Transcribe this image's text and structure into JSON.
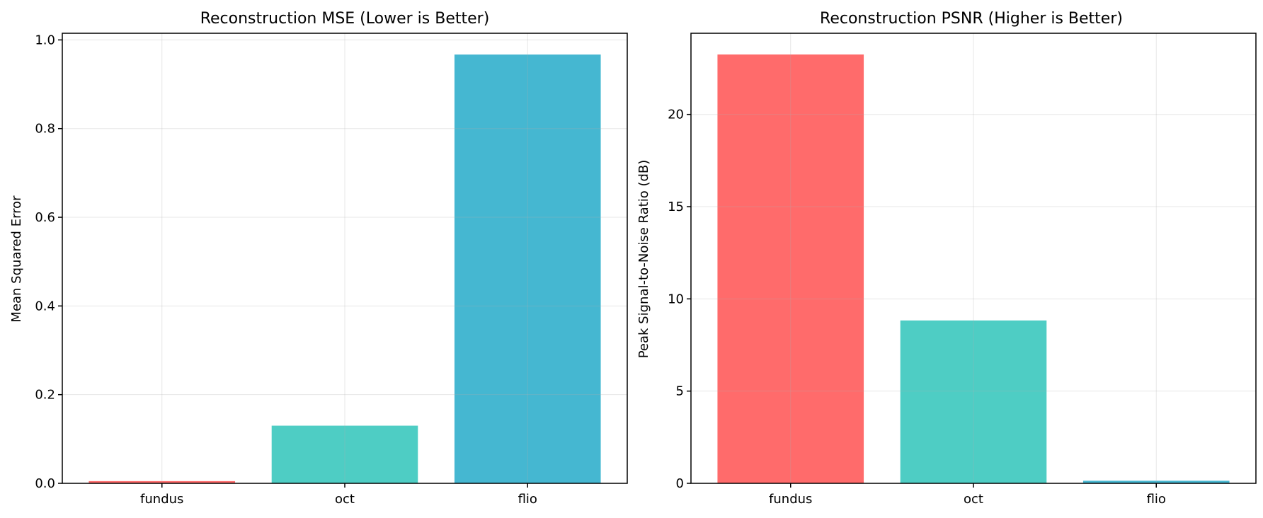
{
  "chart_data": [
    {
      "type": "bar",
      "title": "Reconstruction MSE (Lower is Better)",
      "xlabel": "",
      "ylabel": "Mean Squared Error",
      "categories": [
        "fundus",
        "oct",
        "flio"
      ],
      "values": [
        0.005,
        0.13,
        0.967
      ],
      "colors": [
        "#FF6B6B",
        "#4ECDC4",
        "#45B7D1"
      ],
      "ylim": [
        0,
        1.015
      ],
      "yticks": [
        0.0,
        0.2,
        0.4,
        0.6,
        0.8,
        1.0
      ],
      "ytick_labels": [
        "0.0",
        "0.2",
        "0.4",
        "0.6",
        "0.8",
        "1.0"
      ],
      "grid": true
    },
    {
      "type": "bar",
      "title": "Reconstruction PSNR (Higher is Better)",
      "xlabel": "",
      "ylabel": "Peak Signal-to-Noise Ratio (dB)",
      "categories": [
        "fundus",
        "oct",
        "flio"
      ],
      "values": [
        23.25,
        8.83,
        0.14
      ],
      "colors": [
        "#FF6B6B",
        "#4ECDC4",
        "#45B7D1"
      ],
      "ylim": [
        0,
        24.4
      ],
      "yticks": [
        0,
        5,
        10,
        15,
        20
      ],
      "ytick_labels": [
        "0",
        "5",
        "10",
        "15",
        "20"
      ],
      "grid": true
    }
  ]
}
